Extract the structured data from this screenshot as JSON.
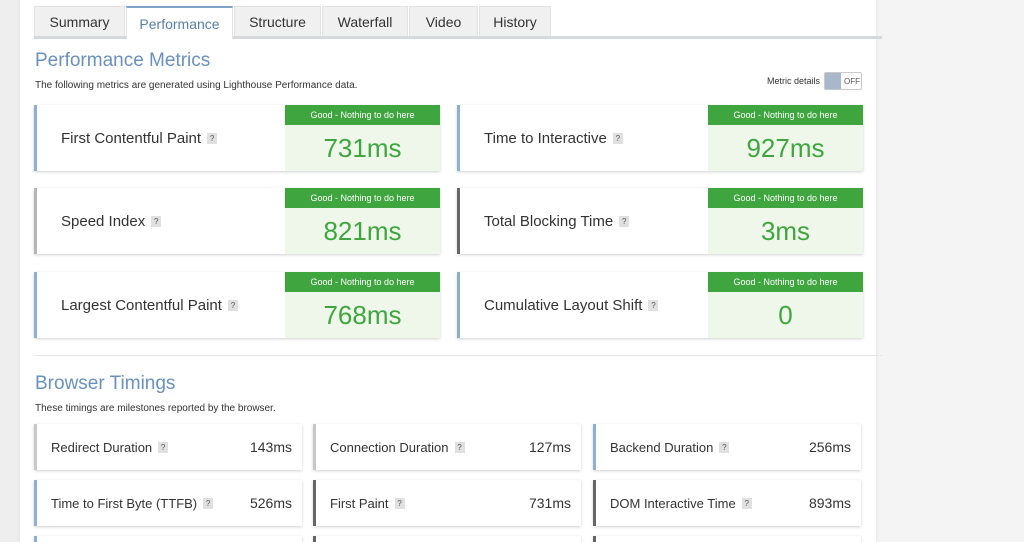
{
  "tabs": [
    "Summary",
    "Performance",
    "Structure",
    "Waterfall",
    "Video",
    "History"
  ],
  "performance": {
    "title": "Performance Metrics",
    "description": "The following metrics are generated using Lighthouse Performance data.",
    "toggle_label": "Metric details",
    "toggle_state": "OFF",
    "metrics": [
      {
        "name": "First Contentful Paint",
        "status": "Good - Nothing to do here",
        "value": "731ms"
      },
      {
        "name": "Time to Interactive",
        "status": "Good - Nothing to do here",
        "value": "927ms"
      },
      {
        "name": "Speed Index",
        "status": "Good - Nothing to do here",
        "value": "821ms"
      },
      {
        "name": "Total Blocking Time",
        "status": "Good - Nothing to do here",
        "value": "3ms"
      },
      {
        "name": "Largest Contentful Paint",
        "status": "Good - Nothing to do here",
        "value": "768ms"
      },
      {
        "name": "Cumulative Layout Shift",
        "status": "Good - Nothing to do here",
        "value": "0"
      }
    ]
  },
  "browser": {
    "title": "Browser Timings",
    "description": "These timings are milestones reported by the browser.",
    "timings": [
      {
        "name": "Redirect Duration",
        "value": "143ms"
      },
      {
        "name": "Connection Duration",
        "value": "127ms"
      },
      {
        "name": "Backend Duration",
        "value": "256ms"
      },
      {
        "name": "Time to First Byte (TTFB)",
        "value": "526ms"
      },
      {
        "name": "First Paint",
        "value": "731ms"
      },
      {
        "name": "DOM Interactive Time",
        "value": "893ms"
      }
    ]
  },
  "help_glyph": "?"
}
